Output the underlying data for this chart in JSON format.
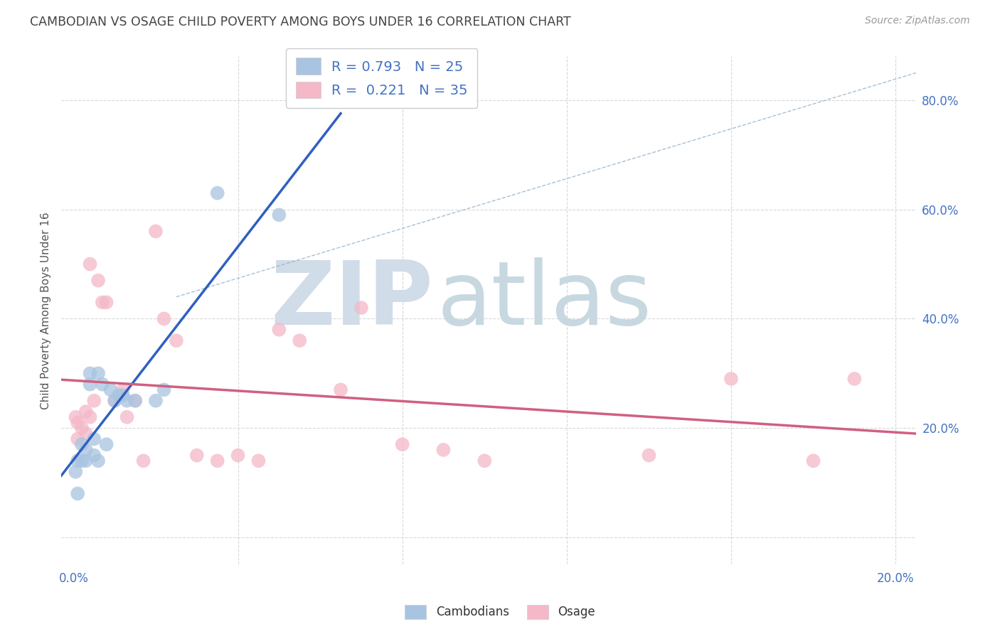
{
  "title": "CAMBODIAN VS OSAGE CHILD POVERTY AMONG BOYS UNDER 16 CORRELATION CHART",
  "source": "Source: ZipAtlas.com",
  "ylabel": "Child Poverty Among Boys Under 16",
  "xlim": [
    -0.003,
    0.205
  ],
  "ylim": [
    -0.05,
    0.88
  ],
  "xtick_positions": [
    0.0,
    0.04,
    0.08,
    0.12,
    0.16,
    0.2
  ],
  "xtick_labels_show": [
    "0.0%",
    "",
    "",
    "",
    "",
    "20.0%"
  ],
  "ytick_positions": [
    0.0,
    0.2,
    0.4,
    0.6,
    0.8
  ],
  "ytick_labels_right": [
    "",
    "20.0%",
    "40.0%",
    "60.0%",
    "80.0%"
  ],
  "cambodian_color": "#a8c4e0",
  "osage_color": "#f4b8c8",
  "cambodian_line_color": "#3060c0",
  "osage_line_color": "#d06080",
  "R_cambodian": 0.793,
  "N_cambodian": 25,
  "R_osage": 0.221,
  "N_osage": 35,
  "cambodian_x": [
    0.0005,
    0.001,
    0.001,
    0.002,
    0.002,
    0.003,
    0.003,
    0.004,
    0.004,
    0.005,
    0.005,
    0.006,
    0.006,
    0.007,
    0.008,
    0.009,
    0.01,
    0.011,
    0.012,
    0.013,
    0.015,
    0.02,
    0.022,
    0.035,
    0.05
  ],
  "cambodian_y": [
    0.12,
    0.08,
    0.14,
    0.14,
    0.17,
    0.16,
    0.14,
    0.28,
    0.3,
    0.18,
    0.15,
    0.14,
    0.3,
    0.28,
    0.17,
    0.27,
    0.25,
    0.26,
    0.26,
    0.25,
    0.25,
    0.25,
    0.27,
    0.63,
    0.59
  ],
  "osage_x": [
    0.0005,
    0.001,
    0.001,
    0.002,
    0.003,
    0.003,
    0.004,
    0.004,
    0.005,
    0.006,
    0.007,
    0.008,
    0.01,
    0.012,
    0.013,
    0.015,
    0.017,
    0.02,
    0.022,
    0.025,
    0.03,
    0.035,
    0.04,
    0.045,
    0.05,
    0.055,
    0.065,
    0.07,
    0.08,
    0.09,
    0.1,
    0.14,
    0.16,
    0.18,
    0.19
  ],
  "osage_y": [
    0.22,
    0.21,
    0.18,
    0.2,
    0.23,
    0.19,
    0.22,
    0.5,
    0.25,
    0.47,
    0.43,
    0.43,
    0.25,
    0.27,
    0.22,
    0.25,
    0.14,
    0.56,
    0.4,
    0.36,
    0.15,
    0.14,
    0.15,
    0.14,
    0.38,
    0.36,
    0.27,
    0.42,
    0.17,
    0.16,
    0.14,
    0.15,
    0.29,
    0.14,
    0.29
  ],
  "background_color": "#ffffff",
  "grid_color": "#d8d8d8",
  "watermark_zip": "ZIP",
  "watermark_atlas": "atlas",
  "watermark_color_zip": "#d0dce8",
  "watermark_color_atlas": "#c8d8e0"
}
